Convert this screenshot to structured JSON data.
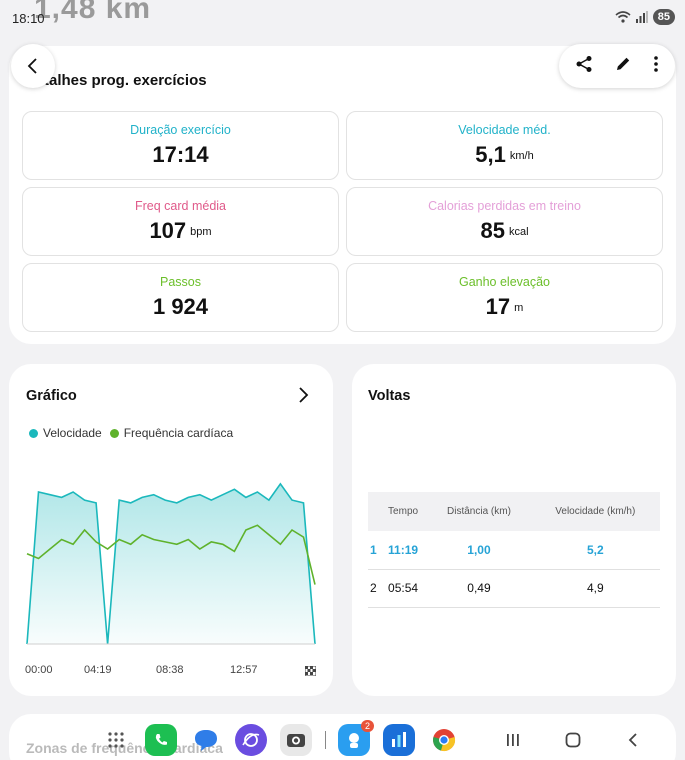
{
  "status_bar": {
    "time": "18:10",
    "ghost_text": "1,48 km",
    "battery": "85"
  },
  "section_title": "talhes prog. exercícios",
  "metrics": [
    {
      "label": "Duração exercício",
      "value": "17:14",
      "unit": "",
      "color": "#21b2c9"
    },
    {
      "label": "Velocidade méd.",
      "value": "5,1",
      "unit": "km/h",
      "color": "#21b2c9"
    },
    {
      "label": "Freq card média",
      "value": "107",
      "unit": "bpm",
      "color": "#e05a8a"
    },
    {
      "label": "Calorias perdidas em treino",
      "value": "85",
      "unit": "kcal",
      "color": "#e4a0d8"
    },
    {
      "label": "Passos",
      "value": "1 924",
      "unit": "",
      "color": "#6bbf2a"
    },
    {
      "label": "Ganho elevação",
      "value": "17",
      "unit": "m",
      "color": "#6bbf2a"
    }
  ],
  "graph": {
    "title": "Gráfico",
    "legend": [
      {
        "label": "Velocidade",
        "color": "#1bb8bc"
      },
      {
        "label": "Frequência cardíaca",
        "color": "#5fb22c"
      }
    ],
    "x_ticks": [
      "00:00",
      "04:19",
      "08:38",
      "12:57"
    ]
  },
  "chart_data": {
    "type": "line",
    "x_unit": "mm:ss",
    "x_ticks": [
      "00:00",
      "04:19",
      "08:38",
      "12:57"
    ],
    "series": [
      {
        "name": "Velocidade",
        "color": "#1bb8bc",
        "values": [
          0,
          5.6,
          5.5,
          5.4,
          5.6,
          5.3,
          5.2,
          0,
          5.3,
          5.2,
          5.4,
          5.5,
          5.3,
          5.2,
          5.4,
          5.5,
          5.3,
          5.5,
          5.7,
          5.4,
          5.6,
          5.3,
          5.9,
          5.3,
          5.2,
          0
        ]
      },
      {
        "name": "Frequência cardíaca",
        "color": "#5fb22c",
        "values": [
          98,
          96,
          100,
          104,
          102,
          108,
          103,
          100,
          104,
          102,
          106,
          104,
          103,
          102,
          104,
          100,
          103,
          102,
          99,
          108,
          110,
          106,
          102,
          108,
          105,
          85
        ]
      }
    ]
  },
  "laps": {
    "title": "Voltas",
    "headers": [
      "",
      "Tempo",
      "Distância (km)",
      "Velocidade (km/h)"
    ],
    "rows": [
      [
        "1",
        "11:19",
        "1,00",
        "5,2"
      ],
      [
        "2",
        "05:54",
        "0,49",
        "4,9"
      ]
    ]
  },
  "bottom_card": {
    "title": "Zonas de frequência cardíaca"
  },
  "taskbar": {
    "apps": [
      {
        "name": "phone",
        "color": "#1dbf52"
      },
      {
        "name": "messages",
        "color": "#2f7de8"
      },
      {
        "name": "internet",
        "color": "#6a4de0"
      },
      {
        "name": "camera",
        "color": "#5f5f5f"
      },
      {
        "name": "bixby",
        "color": "#2a9ef0",
        "badge": "2"
      },
      {
        "name": "health",
        "color": "#1a6fd8"
      },
      {
        "name": "chrome",
        "color": "#ffffff"
      }
    ]
  }
}
